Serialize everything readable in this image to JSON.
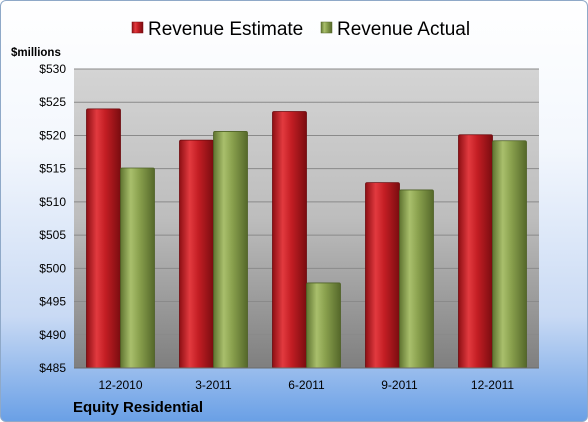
{
  "chart_data": {
    "type": "bar",
    "categories": [
      "12-2010",
      "3-2011",
      "6-2011",
      "9-2011",
      "12-2011"
    ],
    "series": [
      {
        "name": "Revenue Estimate",
        "color": "#c41e24",
        "values": [
          524.0,
          519.3,
          523.6,
          512.9,
          520.1
        ]
      },
      {
        "name": "Revenue Actual",
        "color": "#8aa14e",
        "values": [
          515.1,
          520.6,
          497.8,
          511.8,
          519.2
        ]
      }
    ],
    "ylabel": "$millions",
    "ylim": [
      485,
      530
    ],
    "yticks": [
      "$485",
      "$490",
      "$495",
      "$500",
      "$505",
      "$510",
      "$515",
      "$520",
      "$525",
      "$530"
    ],
    "grid": true,
    "legend": "top-center"
  },
  "footer": {
    "company": "Equity Residential"
  }
}
